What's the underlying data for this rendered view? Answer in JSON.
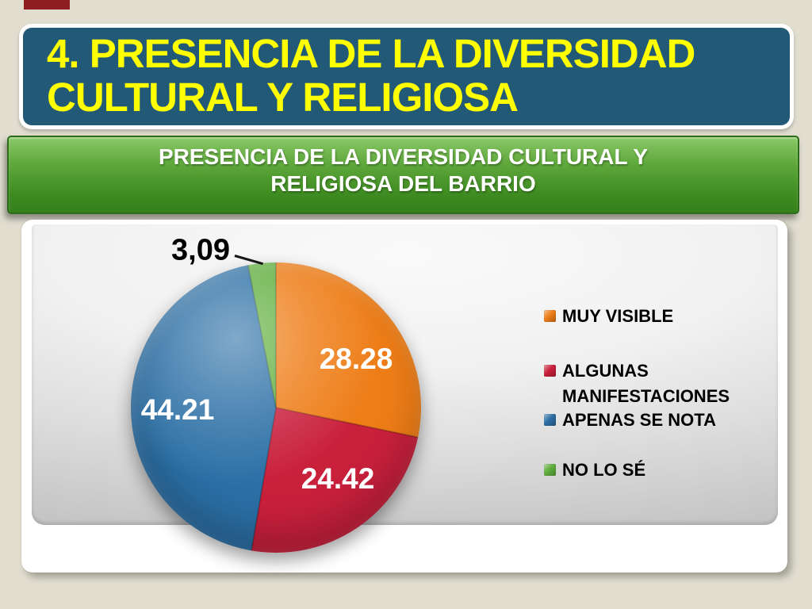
{
  "slide": {
    "title": "4. PRESENCIA DE LA DIVERSIDAD CULTURAL Y RELIGIOSA",
    "banner": "PRESENCIA DE LA DIVERSIDAD CULTURAL Y RELIGIOSA DEL BARRIO"
  },
  "colors": {
    "background": "#E1DED0",
    "title_bar": "#215977",
    "title_text": "#FFFF00",
    "banner_green": "#4E9A31",
    "banner_border": "#2A6C18",
    "corner_accent": "#8E1D22",
    "panel": "#FFFFFF"
  },
  "chart_data": {
    "type": "pie",
    "title": "PRESENCIA DE LA DIVERSIDAD CULTURAL Y RELIGIOSA DEL BARRIO",
    "values_are": "percent",
    "start_angle_deg": 0,
    "direction": "clockwise",
    "legend_position": "right",
    "slices": [
      {
        "label": "MUY VISIBLE",
        "value": 28.28,
        "display_value": "28.28",
        "color": "#EE7D17",
        "label_color": "#FFFFFF",
        "label_placement": "inside"
      },
      {
        "label": "ALGUNAS MANIFESTACIONES",
        "value": 24.42,
        "display_value": "24.42",
        "color": "#C9203C",
        "label_color": "#FFFFFF",
        "label_placement": "inside"
      },
      {
        "label": "APENAS SE NOTA",
        "value": 44.21,
        "display_value": "44.21",
        "color": "#2B6FA5",
        "label_color": "#FFFFFF",
        "label_placement": "inside"
      },
      {
        "label": "NO LO SÉ",
        "value": 3.09,
        "display_value": "3,09",
        "color": "#5FAE3C",
        "label_color": "#000000",
        "label_placement": "outside"
      }
    ]
  }
}
